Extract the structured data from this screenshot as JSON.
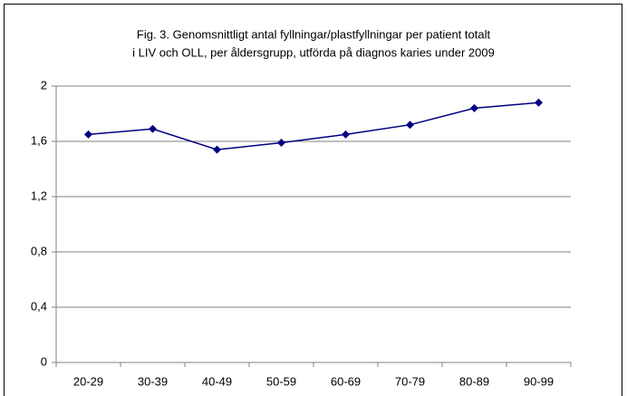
{
  "chart_data": {
    "type": "line",
    "title": [
      "Fig. 3. Genomsnittligt antal fyllningar/plastfyllningar per patient totalt",
      "i LIV och OLL, per åldersgrupp, utförda på diagnos karies under 2009"
    ],
    "categories": [
      "20-29",
      "30-39",
      "40-49",
      "50-59",
      "60-69",
      "70-79",
      "80-89",
      "90-99"
    ],
    "values": [
      1.65,
      1.69,
      1.54,
      1.59,
      1.65,
      1.72,
      1.84,
      1.88
    ],
    "color": "#000080",
    "ylim": [
      0,
      2
    ],
    "yticks": [
      0,
      {
        "value": 0.4,
        "label": "0,4"
      },
      {
        "value": 0.8,
        "label": "0,8"
      },
      {
        "value": 1.2,
        "label": "1,2"
      },
      {
        "value": 1.6,
        "label": "1,6"
      },
      2
    ],
    "grid": true
  }
}
